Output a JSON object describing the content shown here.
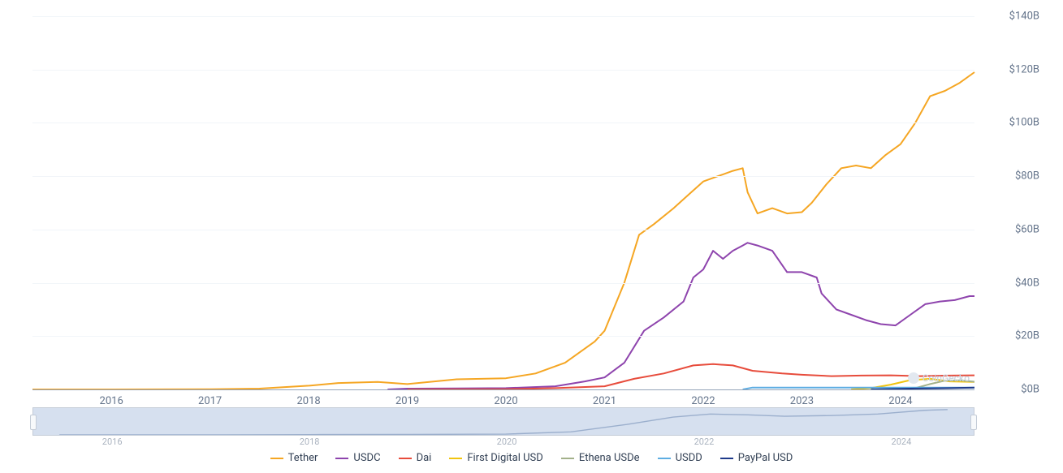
{
  "watermark": "CoinGecko",
  "chart": {
    "type": "line",
    "background_color": "#ffffff",
    "grid_color": "#f1f5f9",
    "baseline_color": "#94a3b8",
    "text_color": "#64748b",
    "line_width": 2,
    "y_axis": {
      "min": 0,
      "max": 140,
      "tick_step": 20,
      "unit_suffix": "B",
      "unit_prefix": "$",
      "labels": [
        "$0B",
        "$20B",
        "$40B",
        "$60B",
        "$80B",
        "$100B",
        "$120B",
        "$140B"
      ]
    },
    "x_axis": {
      "min": 2015.2,
      "max": 2024.75,
      "labels": [
        "2016",
        "2017",
        "2018",
        "2019",
        "2020",
        "2021",
        "2022",
        "2023",
        "2024"
      ]
    },
    "series": [
      {
        "name": "Tether",
        "color": "#f5a623",
        "data": [
          [
            2015.2,
            0.0
          ],
          [
            2016.0,
            0.0
          ],
          [
            2017.0,
            0.1
          ],
          [
            2017.5,
            0.3
          ],
          [
            2018.0,
            1.4
          ],
          [
            2018.3,
            2.4
          ],
          [
            2018.7,
            2.8
          ],
          [
            2019.0,
            2.0
          ],
          [
            2019.5,
            3.8
          ],
          [
            2020.0,
            4.2
          ],
          [
            2020.3,
            6.0
          ],
          [
            2020.6,
            10.0
          ],
          [
            2020.9,
            18.0
          ],
          [
            2021.0,
            22.0
          ],
          [
            2021.2,
            40.0
          ],
          [
            2021.35,
            58.0
          ],
          [
            2021.5,
            62.0
          ],
          [
            2021.7,
            68.0
          ],
          [
            2021.85,
            73.0
          ],
          [
            2022.0,
            78.0
          ],
          [
            2022.15,
            80.0
          ],
          [
            2022.3,
            82.0
          ],
          [
            2022.4,
            83.0
          ],
          [
            2022.45,
            74.0
          ],
          [
            2022.55,
            66.0
          ],
          [
            2022.7,
            68.0
          ],
          [
            2022.85,
            66.0
          ],
          [
            2023.0,
            66.5
          ],
          [
            2023.1,
            70.0
          ],
          [
            2023.25,
            77.0
          ],
          [
            2023.4,
            83.0
          ],
          [
            2023.55,
            84.0
          ],
          [
            2023.7,
            83.0
          ],
          [
            2023.85,
            88.0
          ],
          [
            2024.0,
            92.0
          ],
          [
            2024.15,
            100.0
          ],
          [
            2024.3,
            110.0
          ],
          [
            2024.45,
            112.0
          ],
          [
            2024.6,
            115.0
          ],
          [
            2024.75,
            119.0
          ]
        ]
      },
      {
        "name": "USDC",
        "color": "#8e44ad",
        "data": [
          [
            2018.8,
            0.0
          ],
          [
            2019.0,
            0.3
          ],
          [
            2019.5,
            0.4
          ],
          [
            2020.0,
            0.5
          ],
          [
            2020.5,
            1.2
          ],
          [
            2020.8,
            3.0
          ],
          [
            2021.0,
            4.5
          ],
          [
            2021.2,
            10.0
          ],
          [
            2021.4,
            22.0
          ],
          [
            2021.6,
            27.0
          ],
          [
            2021.8,
            33.0
          ],
          [
            2021.9,
            42.0
          ],
          [
            2022.0,
            45.0
          ],
          [
            2022.1,
            52.0
          ],
          [
            2022.2,
            49.0
          ],
          [
            2022.3,
            52.0
          ],
          [
            2022.4,
            54.0
          ],
          [
            2022.45,
            55.0
          ],
          [
            2022.55,
            54.0
          ],
          [
            2022.7,
            52.0
          ],
          [
            2022.85,
            44.0
          ],
          [
            2023.0,
            44.0
          ],
          [
            2023.15,
            42.0
          ],
          [
            2023.2,
            36.0
          ],
          [
            2023.35,
            30.0
          ],
          [
            2023.5,
            28.0
          ],
          [
            2023.65,
            26.0
          ],
          [
            2023.8,
            24.5
          ],
          [
            2023.95,
            24.0
          ],
          [
            2024.1,
            28.0
          ],
          [
            2024.25,
            32.0
          ],
          [
            2024.4,
            33.0
          ],
          [
            2024.55,
            33.5
          ],
          [
            2024.7,
            35.0
          ],
          [
            2024.75,
            35.0
          ]
        ]
      },
      {
        "name": "Dai",
        "color": "#e74c3c",
        "data": [
          [
            2019.0,
            0.0
          ],
          [
            2020.0,
            0.1
          ],
          [
            2020.5,
            0.5
          ],
          [
            2021.0,
            1.2
          ],
          [
            2021.3,
            4.0
          ],
          [
            2021.6,
            6.0
          ],
          [
            2021.9,
            9.0
          ],
          [
            2022.1,
            9.5
          ],
          [
            2022.3,
            9.0
          ],
          [
            2022.5,
            7.0
          ],
          [
            2022.8,
            6.0
          ],
          [
            2023.0,
            5.5
          ],
          [
            2023.3,
            5.0
          ],
          [
            2023.6,
            5.2
          ],
          [
            2023.9,
            5.3
          ],
          [
            2024.2,
            5.0
          ],
          [
            2024.5,
            5.2
          ],
          [
            2024.75,
            5.3
          ]
        ]
      },
      {
        "name": "First Digital USD",
        "color": "#f1c40f",
        "data": [
          [
            2023.5,
            0.0
          ],
          [
            2023.7,
            0.5
          ],
          [
            2023.9,
            1.8
          ],
          [
            2024.1,
            3.5
          ],
          [
            2024.3,
            4.0
          ],
          [
            2024.5,
            3.0
          ],
          [
            2024.75,
            2.8
          ]
        ]
      },
      {
        "name": "Ethena USDe",
        "color": "#a3b18a",
        "data": [
          [
            2024.0,
            0.0
          ],
          [
            2024.15,
            0.5
          ],
          [
            2024.3,
            2.0
          ],
          [
            2024.45,
            3.3
          ],
          [
            2024.6,
            3.4
          ],
          [
            2024.75,
            2.9
          ]
        ]
      },
      {
        "name": "USDD",
        "color": "#5dade2",
        "data": [
          [
            2022.4,
            0.0
          ],
          [
            2022.5,
            0.7
          ],
          [
            2022.7,
            0.7
          ],
          [
            2023.0,
            0.7
          ],
          [
            2023.5,
            0.7
          ],
          [
            2024.0,
            0.7
          ],
          [
            2024.5,
            0.7
          ],
          [
            2024.75,
            0.7
          ]
        ]
      },
      {
        "name": "PayPal USD",
        "color": "#1e3a8a",
        "data": [
          [
            2023.7,
            0.0
          ],
          [
            2023.9,
            0.15
          ],
          [
            2024.1,
            0.3
          ],
          [
            2024.3,
            0.4
          ],
          [
            2024.5,
            0.5
          ],
          [
            2024.75,
            0.7
          ]
        ]
      }
    ]
  },
  "navigator": {
    "background": "#b6c7e3",
    "line_color": "#4a6fa5",
    "x_labels": [
      "2016",
      "2018",
      "2020",
      "2022",
      "2024"
    ],
    "x_positions": [
      2016,
      2018,
      2020,
      2022,
      2024
    ],
    "x_min": 2015.2,
    "x_max": 2024.75,
    "summary_data": [
      [
        2015.2,
        0
      ],
      [
        2017.0,
        0.3
      ],
      [
        2018.0,
        2.0
      ],
      [
        2019.0,
        3.0
      ],
      [
        2020.0,
        5.0
      ],
      [
        2020.7,
        20.0
      ],
      [
        2021.3,
        70.0
      ],
      [
        2021.8,
        120.0
      ],
      [
        2022.2,
        140.0
      ],
      [
        2022.6,
        135.0
      ],
      [
        2023.0,
        125.0
      ],
      [
        2023.5,
        130.0
      ],
      [
        2024.0,
        140.0
      ],
      [
        2024.5,
        165.0
      ],
      [
        2024.75,
        170.0
      ]
    ],
    "summary_max": 180
  }
}
